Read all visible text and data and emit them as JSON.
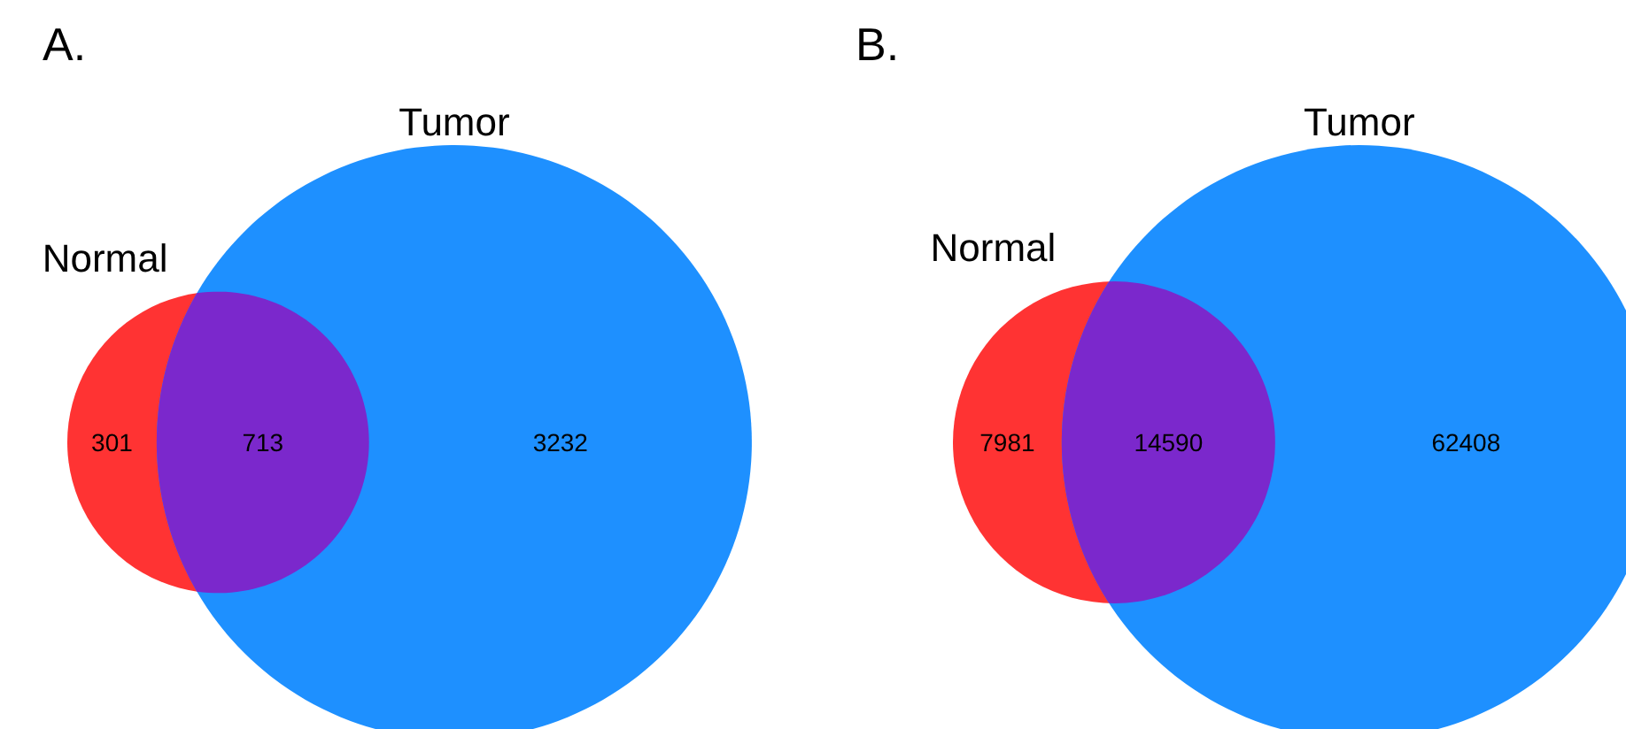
{
  "chart_data": [
    {
      "type": "other",
      "title": "A.",
      "categories": [
        "Normal",
        null,
        "Tumor"
      ],
      "values": [
        301,
        713,
        3232
      ],
      "colors": [
        "#ff3333",
        "#7b28cc",
        "#1e90ff"
      ],
      "data_labels": true
    },
    {
      "type": "other",
      "title": "B.",
      "categories": [
        "Normal",
        null,
        "Tumor"
      ],
      "values": [
        7981,
        14590,
        62408
      ],
      "colors": [
        "#ff3333",
        "#7b28cc",
        "#1e90ff"
      ],
      "data_labels": true
    }
  ]
}
